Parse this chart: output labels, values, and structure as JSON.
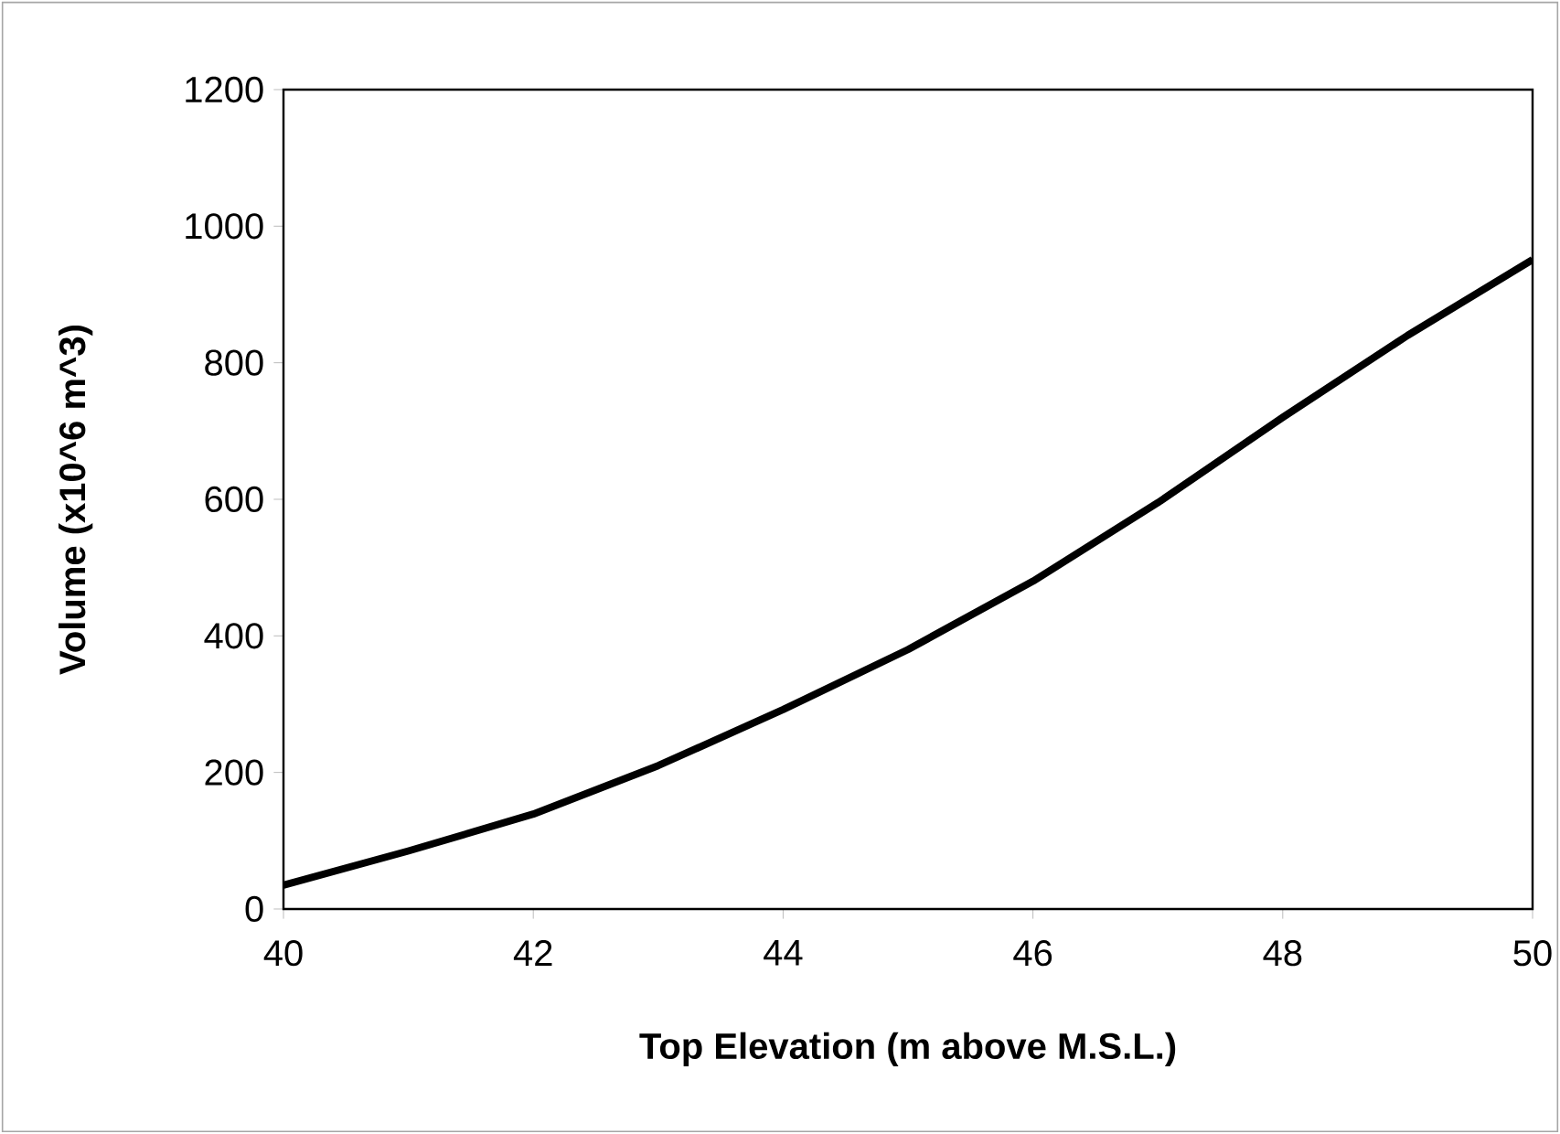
{
  "chart_data": {
    "type": "line",
    "xlabel": "Top Elevation (m above M.S.L.)",
    "ylabel": "Volume (x10^6 m^3)",
    "x": [
      40,
      41,
      42,
      43,
      44,
      45,
      46,
      47,
      48,
      49,
      50
    ],
    "series": [
      {
        "color": "#000000",
        "values": [
          35,
          85,
          139,
          210,
          292,
          380,
          480,
          595,
          720,
          840,
          951
        ]
      }
    ],
    "xlim": [
      40,
      50
    ],
    "ylim": [
      0,
      1200
    ],
    "xticks": [
      40,
      42,
      44,
      46,
      48,
      50
    ],
    "yticks": [
      0,
      200,
      400,
      600,
      800,
      1000,
      1200
    ],
    "grid": false,
    "marker": "none",
    "line_style": "solid"
  }
}
